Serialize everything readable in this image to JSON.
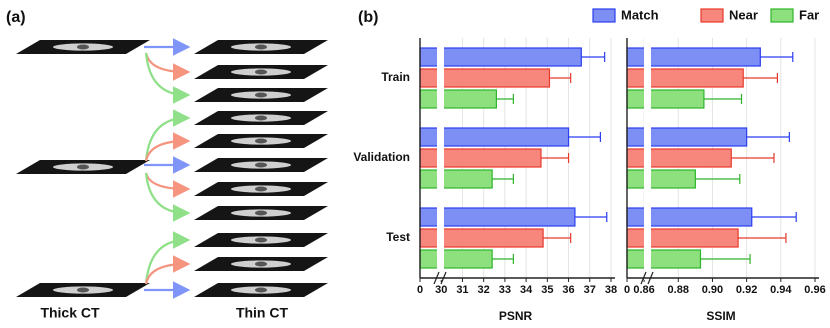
{
  "panel_a": {
    "label": "(a)",
    "left_label": "Thick CT",
    "right_label": "Thin CT"
  },
  "panel_b": {
    "label": "(b)"
  },
  "chart_data": [
    {
      "type": "bar",
      "orientation": "horizontal",
      "xlabel": "PSNR",
      "categories": [
        "Train",
        "Validation",
        "Test"
      ],
      "series": [
        {
          "name": "Match",
          "color": "#7d8ef5",
          "edgecolor": "#2b3ff0",
          "values": [
            36.6,
            36.0,
            36.3
          ],
          "errors": [
            1.1,
            1.5,
            1.5
          ]
        },
        {
          "name": "Near",
          "color": "#f7877c",
          "edgecolor": "#e8392c",
          "values": [
            35.1,
            34.7,
            34.8
          ],
          "errors": [
            1.0,
            1.3,
            1.3
          ]
        },
        {
          "name": "Far",
          "color": "#8ee07f",
          "edgecolor": "#2fb52a",
          "values": [
            32.6,
            32.4,
            32.4
          ],
          "errors": [
            0.8,
            1.0,
            1.0
          ]
        }
      ],
      "xlim": [
        0,
        38
      ],
      "xbreak": [
        0,
        29
      ],
      "xticks": [
        0,
        30,
        31,
        32,
        33,
        34,
        35,
        36,
        37,
        38
      ],
      "grid": true,
      "legend": "top-right"
    },
    {
      "type": "bar",
      "orientation": "horizontal",
      "xlabel": "SSIM",
      "series": [
        {
          "color": "#7d8ef5",
          "edgecolor": "#2b3ff0",
          "values": [
            0.928,
            0.92,
            0.923
          ],
          "errors": [
            0.019,
            0.025,
            0.026
          ]
        },
        {
          "color": "#f7877c",
          "edgecolor": "#e8392c",
          "values": [
            0.918,
            0.911,
            0.915
          ],
          "errors": [
            0.02,
            0.025,
            0.028
          ]
        },
        {
          "color": "#8ee07f",
          "edgecolor": "#2fb52a",
          "values": [
            0.895,
            0.89,
            0.893
          ],
          "errors": [
            0.022,
            0.026,
            0.029
          ]
        }
      ],
      "xlim": [
        0,
        0.96
      ],
      "xbreak": [
        0,
        0.85
      ],
      "xticks": [
        0,
        0.86,
        0.88,
        {
          "value": 0.9,
          "label": "0.90"
        },
        0.92,
        0.94,
        0.96
      ],
      "grid": true
    }
  ]
}
